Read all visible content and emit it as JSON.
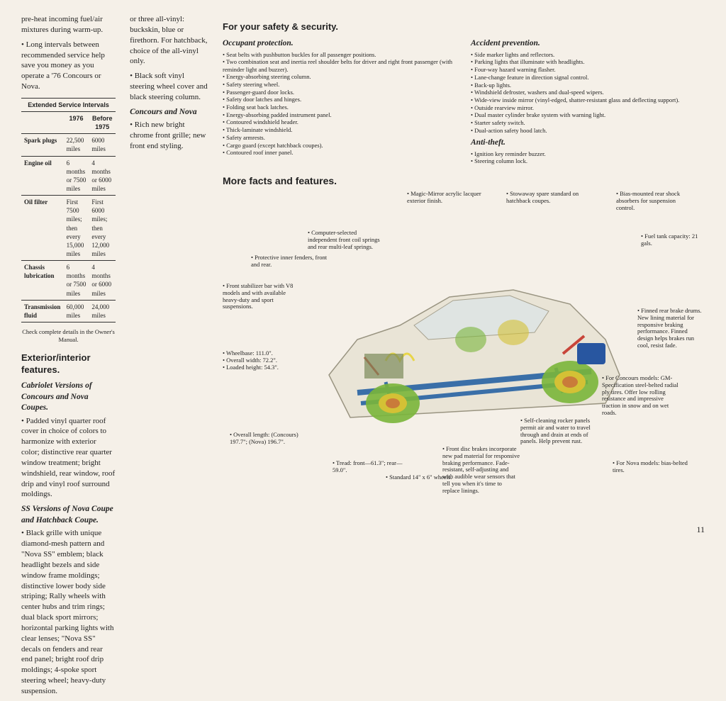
{
  "col1": {
    "intro1": "pre-heat incoming fuel/air mixtures during warm-up.",
    "intro2": "• Long intervals between recommended service help save you money as you operate a '76 Concours or Nova.",
    "table": {
      "title": "Extended Service Intervals",
      "headers": [
        "",
        "1976",
        "Before 1975"
      ],
      "rows": [
        [
          "Spark plugs",
          "22,500 miles",
          "6000 miles"
        ],
        [
          "Engine oil",
          "6 months or 7500 miles",
          "4 months or 6000 miles"
        ],
        [
          "Oil filter",
          "First 7500 miles; then every 15,000 miles",
          "First 6000 miles; then every 12,000 miles"
        ],
        [
          "Chassis lubrication",
          "6 months or 7500 miles",
          "4 months or 6000 miles"
        ],
        [
          "Transmission fluid",
          "60,000 miles",
          "24,000 miles"
        ]
      ],
      "note": "Check complete details in the Owner's Manual."
    },
    "ext_title": "Exterior/interior features.",
    "cab_title": "Cabriolet Versions of Concours and Nova Coupes.",
    "cab_text": "• Padded vinyl quarter roof cover in choice of colors to harmonize with exterior color; distinctive rear quarter window treatment; bright windshield, rear window, roof drip and vinyl roof surround moldings.",
    "ss_title": "SS Versions of Nova Coupe and Hatchback Coupe.",
    "ss_text": "• Black grille with unique diamond-mesh pattern and \"Nova SS\" emblem; black headlight bezels and side window frame moldings; distinctive lower body side striping; Rally wheels with center hubs and trim rings; dual black sport mirrors; horizontal parking lights with clear lenses; \"Nova SS\" decals on fenders and rear end panel; bright roof drip moldings; 4-spoke sport steering wheel; heavy-duty suspension."
  },
  "col2": {
    "p1": "or three all-vinyl: buckskin, blue or firethorn. For hatchback, choice of the all-vinyl only.",
    "p2": "• Black soft vinyl steering wheel cover and black steering column.",
    "concours_title": "Concours and Nova",
    "concours_text": "• Rich new bright chrome front grille; new front end styling."
  },
  "safety": {
    "title": "For your safety & security.",
    "occ_title": "Occupant protection.",
    "occ_items": [
      "Seat belts with pushbutton buckles for all passenger positions.",
      "Two combination seat and inertia reel shoulder belts for driver and right front passenger (with reminder light and buzzer).",
      "Energy-absorbing steering column.",
      "Safety steering wheel.",
      "Passenger-guard door locks.",
      "Safety door latches and hinges.",
      "Folding seat back latches.",
      "Energy-absorbing padded instrument panel.",
      "Contoured windshield header.",
      "Thick-laminate windshield.",
      "Safety armrests.",
      "Cargo guard (except hatchback coupes).",
      "Contoured roof inner panel."
    ],
    "acc_title": "Accident prevention.",
    "acc_items": [
      "Side marker lights and reflectors.",
      "Parking lights that illuminate with headlights.",
      "Four-way hazard warning flasher.",
      "Lane-change feature in direction signal control.",
      "Back-up lights.",
      "Windshield defroster, washers and dual-speed wipers.",
      "Wide-view inside mirror (vinyl-edged, shatter-resistant glass and deflecting support).",
      "Outside rearview mirror.",
      "Dual master cylinder brake system with warning light.",
      "Starter safety switch.",
      "Dual-action safety hood latch."
    ],
    "anti_title": "Anti-theft.",
    "anti_items": [
      "Ignition key reminder buzzer.",
      "Steering column lock."
    ]
  },
  "facts_title": "More facts and features.",
  "callouts": {
    "c1": "• Magic-Mirror acrylic lacquer exterior finish.",
    "c2": "• Stowaway spare standard on hatchback coupes.",
    "c3": "• Bias-mounted rear shock absorbers for suspension control.",
    "c4": "• Fuel tank capacity: 21 gals.",
    "c5": "• Computer-selected independent front coil springs and rear multi-leaf springs.",
    "c6": "• Protective inner fenders, front and rear.",
    "c7": "• Front stabilizer bar with V8 models and with available heavy-duty and sport suspensions.",
    "c8": "• Wheelbase: 111.0\".\n• Overall width: 72.2\".\n• Loaded height: 54.3\".",
    "c9": "• Overall length: (Concours) 197.7\"; (Nova) 196.7\".",
    "c10": "• Tread: front—61.3\"; rear—59.0\".",
    "c11": "• Standard 14\" x 6\" wheels.",
    "c12": "• Front disc brakes incorporate new pad material for responsive braking performance. Fade-resistant, self-adjusting and with audible wear sensors that tell you when it's time to replace linings.",
    "c13": "• Self-cleaning rocker panels permit air and water to travel through and drain at ends of panels. Help prevent rust.",
    "c14": "• For Concours models: GM-Specification steel-belted radial ply tires. Offer low rolling resistance and impressive traction in snow and on wet roads.",
    "c15": "• For Nova models: bias-belted tires.",
    "c16": "• Finned rear brake drums. New lining material for responsive braking performance. Finned design helps brakes run cool, resist fade."
  },
  "car_colors": {
    "body": "#e8e2d4",
    "body_stroke": "#8a8570",
    "chassis": "#3a6fa8",
    "wheel_green": "#7ab53a",
    "wheel_yellow": "#d4c135",
    "brake": "#c97b3a",
    "tank": "#2856a0",
    "spring_yellow": "#e8d548",
    "accent_red": "#c8453a"
  },
  "page_num": "11"
}
